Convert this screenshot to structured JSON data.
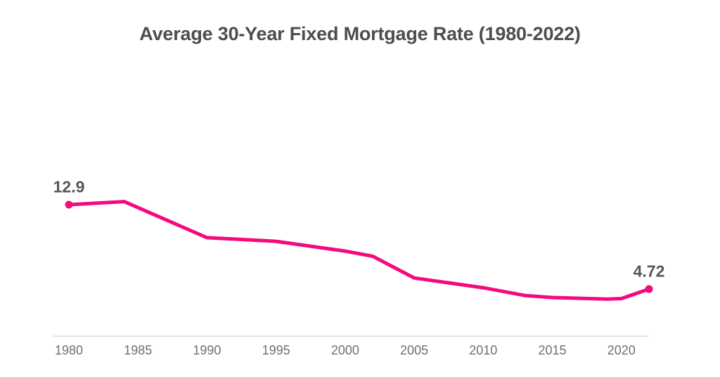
{
  "page": {
    "background": "#FFFFFF"
  },
  "header": {
    "title": "Average 30-Year Fixed Mortgage Rate (1980-2022)"
  },
  "colors": {
    "line": "#F5097E",
    "marker": "#F5097E",
    "title_text": "#4D4D4D",
    "point_label_text": "#565658",
    "tick_text": "#6F6F6F",
    "axis_line": "#E5E5E5",
    "background": "#FFFFFF"
  },
  "chart_data": {
    "type": "line",
    "title": "Average 30-Year Fixed Mortgage Rate (1980-2022)",
    "xlabel": "",
    "ylabel": "",
    "series_name": "Average 30-year fixed mortgage rate (%)",
    "x": [
      1980,
      1984,
      1990,
      1995,
      2000,
      2002,
      2005,
      2010,
      2013,
      2015,
      2019,
      2020,
      2022
    ],
    "values": [
      12.9,
      13.2,
      9.7,
      9.35,
      8.4,
      7.9,
      5.8,
      4.85,
      4.1,
      3.9,
      3.75,
      3.8,
      4.72
    ],
    "x_ticks": [
      1980,
      1985,
      1990,
      1995,
      2000,
      2005,
      2010,
      2015,
      2020
    ],
    "x_tick_labels": [
      "1980",
      "1985",
      "1990",
      "1995",
      "2000",
      "2005",
      "2010",
      "2015",
      "2020"
    ],
    "x_range": [
      1980,
      2022
    ],
    "point_labels": [
      {
        "x": 1980,
        "value": 12.9,
        "label": "12.9"
      },
      {
        "x": 2022,
        "value": 4.72,
        "label": "4.72"
      }
    ],
    "grid": false,
    "legend": false,
    "y_axis_shown": false
  }
}
